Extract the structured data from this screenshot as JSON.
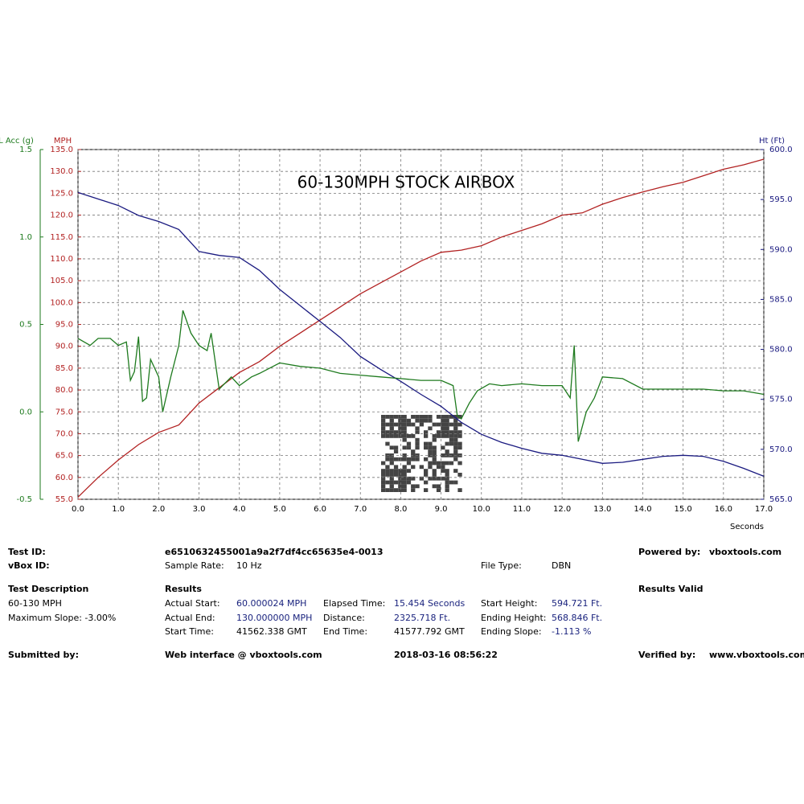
{
  "chart_data": {
    "type": "line",
    "title": "60-130MPH STOCK AIRBOX",
    "xlabel": "Seconds",
    "ylabel": "MPH",
    "y2label": "Ht (Ft)",
    "y3label": "L Acc (g)",
    "grid": true,
    "xlim": [
      0,
      17
    ],
    "xticks": [
      {
        "value": 0,
        "label": "0.0"
      },
      {
        "value": 1,
        "label": "1.0"
      },
      {
        "value": 2,
        "label": "2.0"
      },
      {
        "value": 3,
        "label": "3.0"
      },
      {
        "value": 4,
        "label": "4.0"
      },
      {
        "value": 5,
        "label": "5.0"
      },
      {
        "value": 6,
        "label": "6.0"
      },
      {
        "value": 7,
        "label": "7.0"
      },
      {
        "value": 8,
        "label": "8.0"
      },
      {
        "value": 9,
        "label": "9.0"
      },
      {
        "value": 10,
        "label": "10.0"
      },
      {
        "value": 11,
        "label": "11.0"
      },
      {
        "value": 12,
        "label": "12.0"
      },
      {
        "value": 13,
        "label": "13.0"
      },
      {
        "value": 14,
        "label": "14.0"
      },
      {
        "value": 15,
        "label": "15.0"
      },
      {
        "value": 16,
        "label": "16.0"
      },
      {
        "value": 17,
        "label": "17.0"
      }
    ],
    "ylim": [
      55,
      135
    ],
    "yticks": [
      {
        "value": 55,
        "label": "55.0"
      },
      {
        "value": 60,
        "label": "60.0"
      },
      {
        "value": 65,
        "label": "65.0"
      },
      {
        "value": 70,
        "label": "70.0"
      },
      {
        "value": 75,
        "label": "75.0"
      },
      {
        "value": 80,
        "label": "80.0"
      },
      {
        "value": 85,
        "label": "85.0"
      },
      {
        "value": 90,
        "label": "90.0"
      },
      {
        "value": 95,
        "label": "95.0"
      },
      {
        "value": 100,
        "label": "100.0"
      },
      {
        "value": 105,
        "label": "105.0"
      },
      {
        "value": 110,
        "label": "110.0"
      },
      {
        "value": 115,
        "label": "115.0"
      },
      {
        "value": 120,
        "label": "120.0"
      },
      {
        "value": 125,
        "label": "125.0"
      },
      {
        "value": 130,
        "label": "130.0"
      },
      {
        "value": 135,
        "label": "135.0"
      }
    ],
    "y2lim": [
      565,
      600
    ],
    "y2ticks": [
      {
        "value": 565,
        "label": "565.0"
      },
      {
        "value": 570,
        "label": "570.0"
      },
      {
        "value": 575,
        "label": "575.0"
      },
      {
        "value": 580,
        "label": "580.0"
      },
      {
        "value": 585,
        "label": "585.0"
      },
      {
        "value": 590,
        "label": "590.0"
      },
      {
        "value": 595,
        "label": "595.0"
      },
      {
        "value": 600,
        "label": "600.0"
      }
    ],
    "y3lim": [
      -0.5,
      1.5
    ],
    "y3ticks": [
      -0.5,
      {
        "value": 0,
        "label": "0.0"
      },
      0.5,
      {
        "value": 1,
        "label": "1.0"
      },
      1.5
    ],
    "series": [
      {
        "color": "#b22222",
        "axis": "y",
        "x": [
          0,
          0.5,
          1,
          1.5,
          2,
          2.5,
          3,
          3.5,
          4,
          4.5,
          5,
          5.5,
          6,
          6.5,
          7,
          7.5,
          8,
          8.5,
          9,
          9.5,
          10,
          10.5,
          11,
          11.5,
          12,
          12.5,
          13,
          13.5,
          14,
          14.5,
          15,
          15.5,
          16,
          16.5,
          17
        ],
        "values": [
          55.5,
          60,
          64,
          67.5,
          70.3,
          72,
          77,
          80.5,
          84,
          86.5,
          90,
          93,
          96,
          99,
          102,
          104.5,
          107,
          109.5,
          111.5,
          112,
          113,
          115,
          116.5,
          118,
          120,
          120.5,
          122.5,
          124,
          125.3,
          126.5,
          127.5,
          129,
          130.5,
          131.5,
          132.8
        ]
      },
      {
        "color": "#1a1a80",
        "axis": "y2",
        "x": [
          0,
          1,
          1.5,
          2,
          2.5,
          3,
          3.5,
          4,
          4.5,
          5,
          5.5,
          6,
          6.5,
          7,
          7.5,
          8,
          8.5,
          9,
          9.5,
          10,
          10.5,
          11,
          11.5,
          12,
          12.5,
          13,
          13.5,
          14,
          14.5,
          15,
          15.5,
          16,
          16.5,
          17
        ],
        "values": [
          595.7,
          594.4,
          593.4,
          592.8,
          592,
          589.8,
          589.4,
          589.2,
          587.9,
          586,
          584.4,
          582.8,
          581.2,
          579.3,
          578,
          576.8,
          575.5,
          574.3,
          572.7,
          571.5,
          570.7,
          570.1,
          569.6,
          569.4,
          569,
          568.6,
          568.7,
          569,
          569.3,
          569.4,
          569.3,
          568.8,
          568.1,
          567.3
        ]
      },
      {
        "color": "#1e7a1e",
        "axis": "y3",
        "x": [
          0,
          0.3,
          0.5,
          0.8,
          1,
          1.2,
          1.3,
          1.4,
          1.5,
          1.6,
          1.7,
          1.8,
          2,
          2.1,
          2.3,
          2.5,
          2.6,
          2.8,
          3,
          3.2,
          3.3,
          3.5,
          3.8,
          4,
          4.3,
          4.5,
          5,
          5.5,
          6,
          6.5,
          7,
          7.5,
          8,
          8.5,
          9,
          9.3,
          9.4,
          9.5,
          9.7,
          9.9,
          10.2,
          10.5,
          11,
          11.5,
          12,
          12.2,
          12.3,
          12.4,
          12.6,
          12.8,
          13,
          13.5,
          14,
          14.5,
          15,
          15.5,
          16,
          16.5,
          17
        ],
        "values": [
          0.42,
          0.38,
          0.42,
          0.42,
          0.38,
          0.4,
          0.18,
          0.23,
          0.43,
          0.06,
          0.08,
          0.3,
          0.2,
          0,
          0.2,
          0.38,
          0.58,
          0.45,
          0.38,
          0.35,
          0.45,
          0.13,
          0.2,
          0.15,
          0.2,
          0.22,
          0.28,
          0.26,
          0.25,
          0.22,
          0.21,
          0.2,
          0.19,
          0.18,
          0.18,
          0.15,
          -0.02,
          -0.04,
          0.05,
          0.12,
          0.16,
          0.15,
          0.16,
          0.15,
          0.15,
          0.08,
          0.38,
          -0.17,
          0,
          0.08,
          0.2,
          0.19,
          0.13,
          0.13,
          0.13,
          0.13,
          0.12,
          0.12,
          0.1
        ]
      }
    ]
  },
  "panel": {
    "test_id_label": "Test ID:",
    "test_id": "e6510632455001a9a2f7df4cc65635e4-0013",
    "powered_label": "Powered by:",
    "powered": "vboxtools.com",
    "vbox_id_label": "vBox ID:",
    "sample_rate_label": "Sample Rate:",
    "sample_rate": "10 Hz",
    "file_type_label": "File Type:",
    "file_type": "DBN",
    "test_desc_label": "Test Description",
    "desc_1": "60-130 MPH",
    "desc_2": "Maximum Slope:  -3.00%",
    "results_label": "Results",
    "results_valid": "Results Valid",
    "actual_start_label": "Actual Start:",
    "actual_start": "60.000024 MPH",
    "actual_end_label": "Actual End:",
    "actual_end": "130.000000 MPH",
    "start_time_label": "Start Time:",
    "start_time": "41562.338 GMT",
    "elapsed_label": "Elapsed Time:",
    "elapsed": "15.454 Seconds",
    "distance_label": "Distance:",
    "distance": "2325.718 Ft.",
    "end_time_label": "End Time:",
    "end_time": "41577.792 GMT",
    "start_height_label": "Start Height:",
    "start_height": "594.721 Ft.",
    "ending_height_label": "Ending Height:",
    "ending_height": "568.846 Ft.",
    "ending_slope_label": "Ending Slope:",
    "ending_slope": "-1.113 %",
    "submitted_label": "Submitted by:",
    "web": "Web interface @ vboxtools.com",
    "date": "2018-03-16 08:56:22",
    "verified_label": "Verified by:",
    "verified": "www.vboxtools.com"
  }
}
